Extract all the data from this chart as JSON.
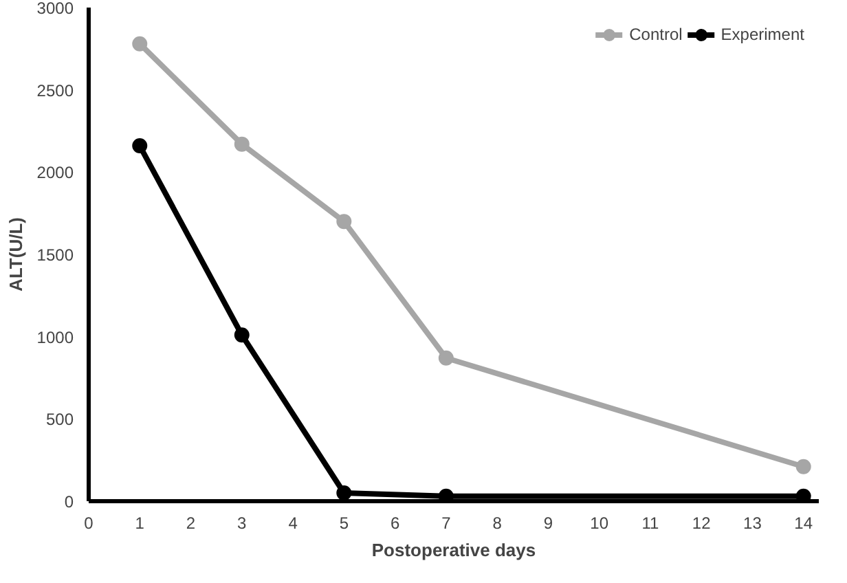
{
  "chart_data": {
    "type": "line",
    "xlabel": "Postoperative days",
    "ylabel": "ALT(U/L)",
    "x": [
      1,
      3,
      5,
      7,
      14
    ],
    "series": [
      {
        "name": "Control",
        "color": "#a6a6a6",
        "values": [
          2780,
          2170,
          1700,
          870,
          210
        ]
      },
      {
        "name": "Experiment",
        "color": "#000000",
        "values": [
          2160,
          1010,
          50,
          30,
          30
        ]
      }
    ],
    "xlim": [
      0,
      14.3
    ],
    "xticks": [
      0,
      1,
      2,
      3,
      4,
      5,
      6,
      7,
      8,
      9,
      10,
      11,
      12,
      13,
      14
    ],
    "ylim": [
      0,
      3000
    ],
    "yticks": [
      0,
      500,
      1000,
      1500,
      2000,
      2500,
      3000
    ],
    "grid": false,
    "legend": "top right",
    "marker": "circle",
    "line_style": "solid"
  }
}
